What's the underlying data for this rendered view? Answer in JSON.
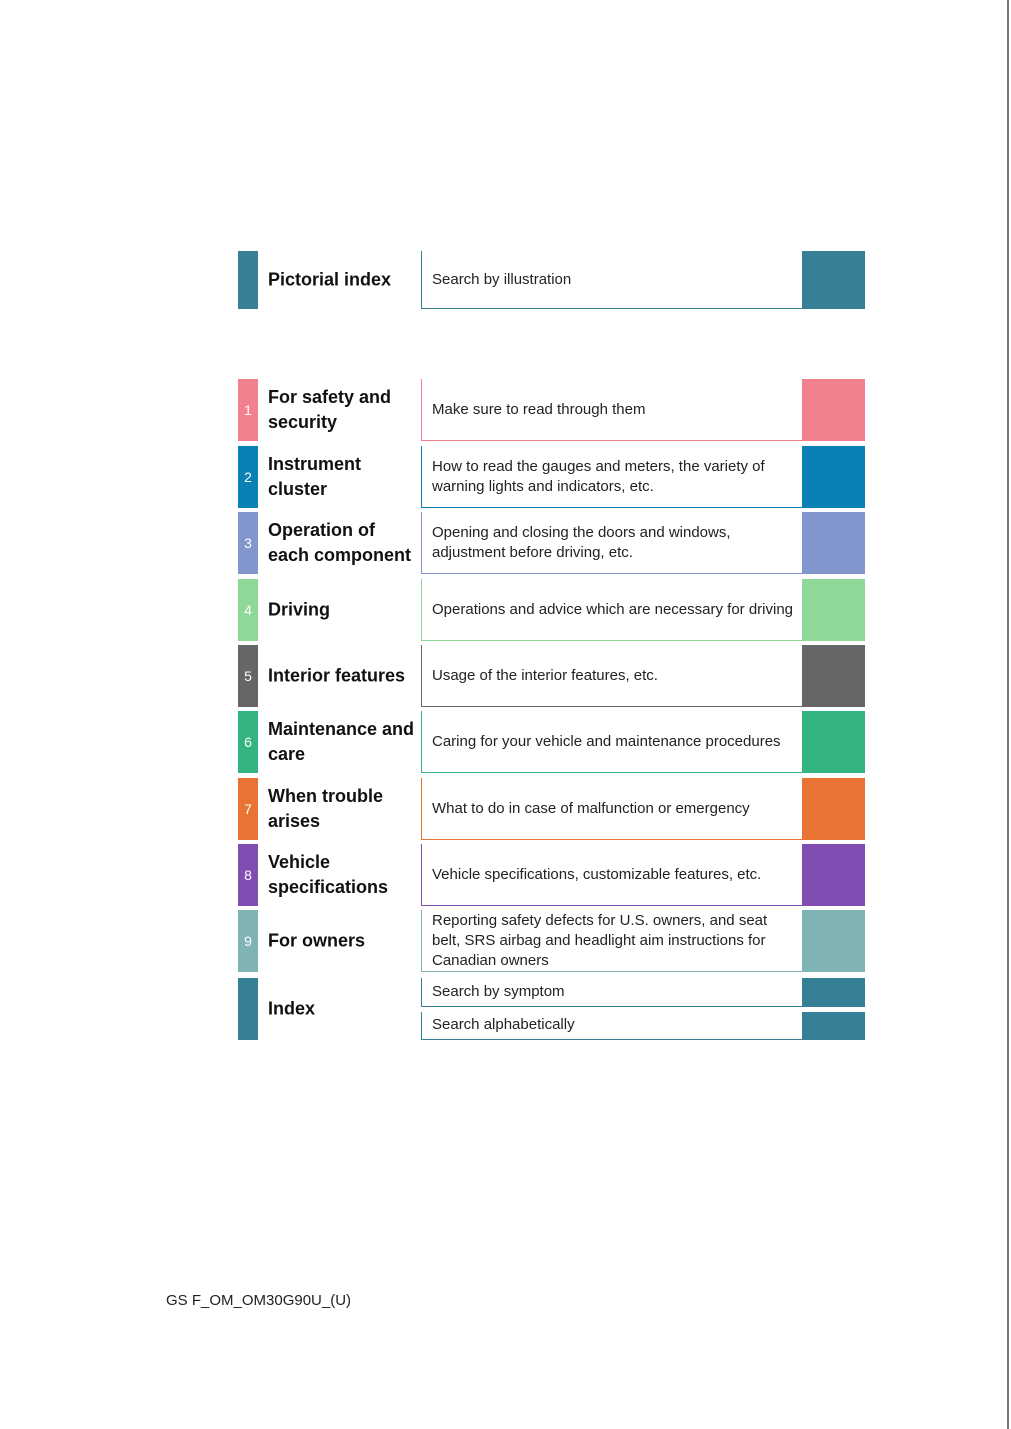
{
  "pictorial": {
    "label": "Pictorial index",
    "desc": "Search by illustration",
    "color": "#357f97"
  },
  "chapters": [
    {
      "num": "1",
      "label": "For safety and security",
      "desc": "Make sure to read through them",
      "color": "#f2808e"
    },
    {
      "num": "2",
      "label": "Instrument cluster",
      "desc": "How to read the gauges and meters, the variety of warning lights and indicators, etc.",
      "color": "#0a80b4"
    },
    {
      "num": "3",
      "label": "Operation of each component",
      "desc": "Opening and closing the doors and windows, adjustment before driving, etc.",
      "color": "#8096cc"
    },
    {
      "num": "4",
      "label": "Driving",
      "desc": "Operations and advice which are necessary for driving",
      "color": "#8fd998"
    },
    {
      "num": "5",
      "label": "Interior features",
      "desc": "Usage of the interior features, etc.",
      "color": "#666666"
    },
    {
      "num": "6",
      "label": "Maintenance and care",
      "desc": "Caring for your vehicle and maintenance procedures",
      "color": "#33b37f"
    },
    {
      "num": "7",
      "label": "When trouble arises",
      "desc": "What to do in case of malfunction or emergency",
      "color": "#e87333"
    },
    {
      "num": "8",
      "label": "Vehicle specifications",
      "desc": "Vehicle specifications, customizable features, etc.",
      "color": "#824db3"
    },
    {
      "num": "9",
      "label": "For owners",
      "desc": "Reporting safety defects for U.S. owners, and seat belt, SRS airbag and headlight aim instructions for Canadian owners",
      "color": "#80b3b3"
    }
  ],
  "index": {
    "label": "Index",
    "items": [
      "Search by symptom",
      "Search alphabetically"
    ],
    "color": "#357f97"
  },
  "footer": "GS F_OM_OM30G90U_(U)"
}
